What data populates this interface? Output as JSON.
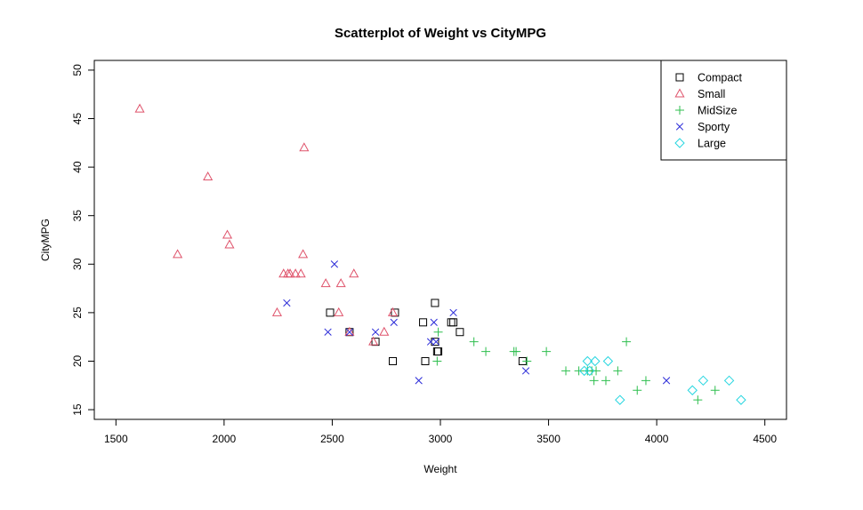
{
  "chart_data": {
    "type": "scatter",
    "title": "Scatterplot of Weight vs CityMPG",
    "xlabel": "Weight",
    "ylabel": "CityMPG",
    "xlim": [
      1400,
      4600
    ],
    "ylim": [
      14,
      51
    ],
    "xticks": [
      1500,
      2000,
      2500,
      3000,
      3500,
      4000,
      4500
    ],
    "yticks": [
      15,
      20,
      25,
      30,
      35,
      40,
      45,
      50
    ],
    "grid": false,
    "legend_position": "top-right",
    "series": [
      {
        "name": "Compact",
        "marker": "square",
        "color": "#000000",
        "points": [
          [
            2490,
            25
          ],
          [
            2580,
            23
          ],
          [
            2700,
            22
          ],
          [
            2780,
            20
          ],
          [
            2790,
            25
          ],
          [
            2920,
            24
          ],
          [
            2930,
            20
          ],
          [
            2975,
            26
          ],
          [
            2985,
            21
          ],
          [
            2990,
            21
          ],
          [
            3050,
            24
          ],
          [
            3060,
            24
          ],
          [
            3090,
            23
          ],
          [
            3380,
            20
          ],
          [
            2975,
            22
          ]
        ]
      },
      {
        "name": "Small",
        "marker": "triangle",
        "color": "#df536b",
        "points": [
          [
            1610,
            46
          ],
          [
            1785,
            31
          ],
          [
            1925,
            39
          ],
          [
            2015,
            33
          ],
          [
            2025,
            32
          ],
          [
            2245,
            25
          ],
          [
            2275,
            29
          ],
          [
            2295,
            29
          ],
          [
            2305,
            29
          ],
          [
            2330,
            29
          ],
          [
            2355,
            29
          ],
          [
            2365,
            31
          ],
          [
            2370,
            42
          ],
          [
            2470,
            28
          ],
          [
            2530,
            25
          ],
          [
            2540,
            28
          ],
          [
            2580,
            23
          ],
          [
            2600,
            29
          ],
          [
            2690,
            22
          ],
          [
            2740,
            23
          ],
          [
            2780,
            25
          ]
        ]
      },
      {
        "name": "MidSize",
        "marker": "plus",
        "color": "#2fbf4f",
        "points": [
          [
            2985,
            20
          ],
          [
            2990,
            23
          ],
          [
            3155,
            22
          ],
          [
            3210,
            21
          ],
          [
            3340,
            21
          ],
          [
            3350,
            21
          ],
          [
            3400,
            20
          ],
          [
            3490,
            21
          ],
          [
            3580,
            19
          ],
          [
            3640,
            19
          ],
          [
            3680,
            19
          ],
          [
            3700,
            19
          ],
          [
            3710,
            18
          ],
          [
            3720,
            19
          ],
          [
            3765,
            18
          ],
          [
            3820,
            19
          ],
          [
            3860,
            22
          ],
          [
            3910,
            17
          ],
          [
            3950,
            18
          ],
          [
            4190,
            16
          ],
          [
            4270,
            17
          ]
        ]
      },
      {
        "name": "Sporty",
        "marker": "x",
        "color": "#2b2bd8",
        "points": [
          [
            2290,
            26
          ],
          [
            2480,
            23
          ],
          [
            2510,
            30
          ],
          [
            2580,
            23
          ],
          [
            2700,
            23
          ],
          [
            2785,
            24
          ],
          [
            2900,
            18
          ],
          [
            2955,
            22
          ],
          [
            2970,
            24
          ],
          [
            2980,
            22
          ],
          [
            3060,
            25
          ],
          [
            3395,
            19
          ],
          [
            4045,
            18
          ]
        ]
      },
      {
        "name": "Large",
        "marker": "diamond",
        "color": "#28d6e0",
        "points": [
          [
            3665,
            19
          ],
          [
            3680,
            20
          ],
          [
            3690,
            19
          ],
          [
            3715,
            20
          ],
          [
            3775,
            20
          ],
          [
            3830,
            16
          ],
          [
            4165,
            17
          ],
          [
            4215,
            18
          ],
          [
            4335,
            18
          ],
          [
            4390,
            16
          ]
        ]
      }
    ]
  }
}
